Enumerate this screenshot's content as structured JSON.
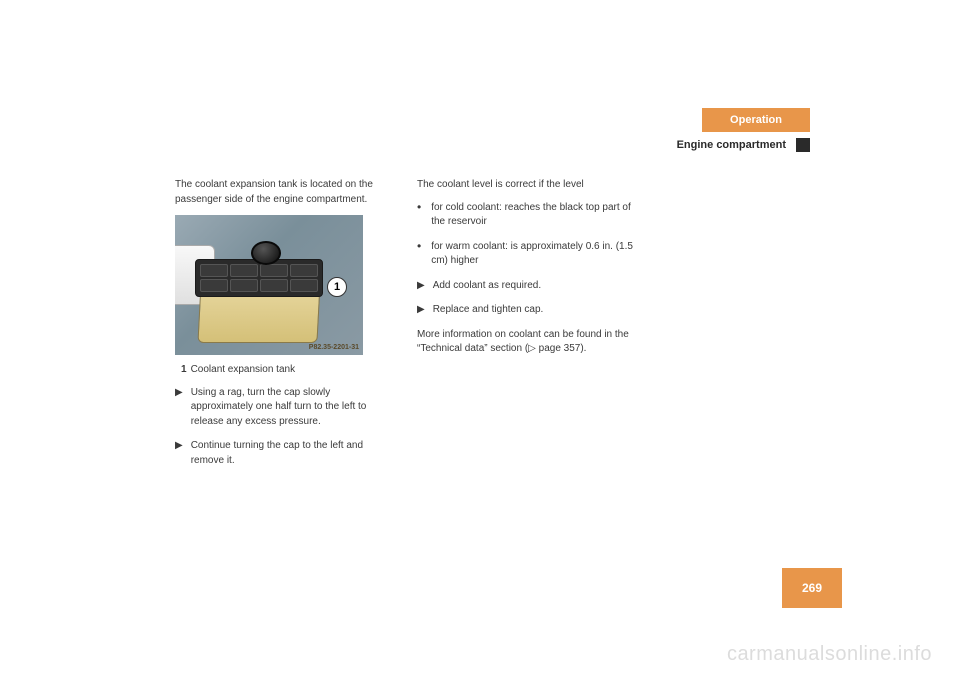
{
  "header": {
    "section": "Operation",
    "subtitle": "Engine compartment"
  },
  "col1": {
    "intro": "The coolant expansion tank is located on the passenger side of the engine compartment.",
    "photo_id": "P82.35-2201-31",
    "callout_num": "1",
    "caption_num": "1",
    "caption_text": "Coolant expansion tank",
    "step1": "Using a rag, turn the cap slowly approximately one half turn to the left to release any excess pressure.",
    "step2": "Continue turning the cap to the left and remove it."
  },
  "col2": {
    "intro": "The coolant level is correct if the level",
    "bullet1": "for cold coolant: reaches the black top part of the reservoir",
    "bullet2": "for warm coolant: is approximately 0.6 in. (1.5 cm) higher",
    "step1": "Add coolant as required.",
    "step2": "Replace and tighten cap.",
    "more": "More information on coolant can be found in the “Technical data” section (▷ page 357)."
  },
  "page_number": "269",
  "watermark": "carmanualsonline.info",
  "colors": {
    "accent": "#e8964a",
    "text": "#3a3a3a",
    "header_text": "#ffffff"
  }
}
